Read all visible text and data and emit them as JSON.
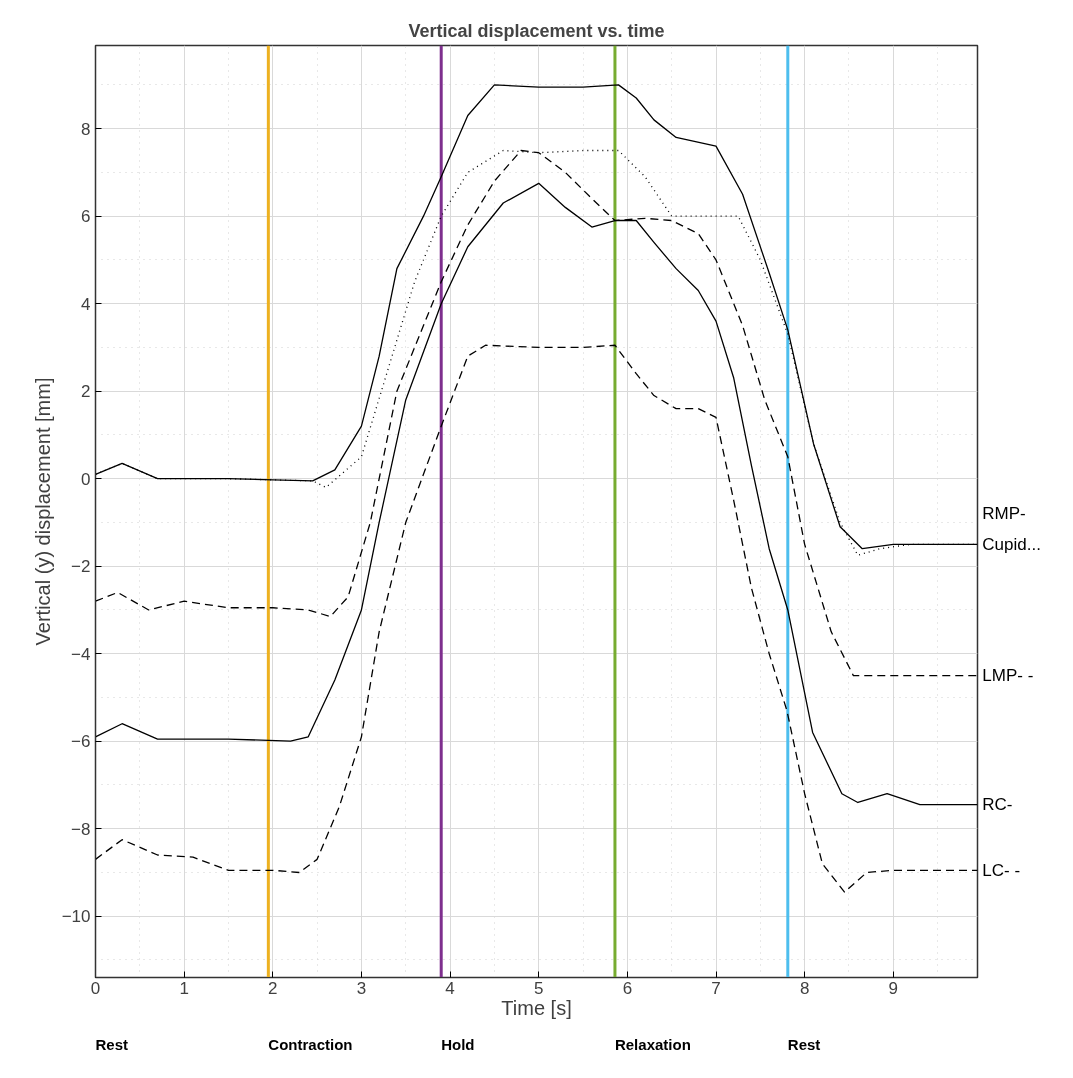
{
  "chart_data": {
    "type": "line",
    "title": "Vertical displacement vs. time",
    "xlabel": "Time [s]",
    "ylabel": "Vertical (y) displacement [mm]",
    "xlim": [
      0,
      9.95
    ],
    "xticks": [
      0,
      1,
      2,
      3,
      4,
      5,
      6,
      7,
      8,
      9
    ],
    "ylim": [
      -11.4,
      9.9
    ],
    "yticks": [
      -10,
      -8,
      -6,
      -4,
      -2,
      0,
      2,
      4,
      6,
      8
    ],
    "grid": true,
    "series": [
      {
        "name": "Cupid...",
        "color": "#000000",
        "line_style": "dotted",
        "x": [
          0,
          0.3,
          0.7,
          1.5,
          2.45,
          2.6,
          3.0,
          3.3,
          3.6,
          3.9,
          4.2,
          4.6,
          5.0,
          5.5,
          5.9,
          6.2,
          6.5,
          7.0,
          7.25,
          7.5,
          7.81,
          8.1,
          8.4,
          8.6,
          8.85,
          9.2,
          9.95
        ],
        "values": [
          0.1,
          0.35,
          0,
          0,
          -0.05,
          -0.2,
          0.5,
          2.5,
          4.5,
          6.0,
          7.0,
          7.5,
          7.45,
          7.5,
          7.5,
          6.9,
          6.0,
          6.0,
          6.0,
          5.0,
          3.3,
          0.8,
          -1.0,
          -1.75,
          -1.6,
          -1.5,
          -1.5
        ]
      },
      {
        "name": "RMP-",
        "color": "#000000",
        "line_style": "solid",
        "x": [
          0,
          0.3,
          0.7,
          1.5,
          2.45,
          2.7,
          3.0,
          3.2,
          3.4,
          3.7,
          3.9,
          4.2,
          4.5,
          5.0,
          5.5,
          5.9,
          6.1,
          6.3,
          6.55,
          7.0,
          7.3,
          7.6,
          7.81,
          8.1,
          8.4,
          8.65,
          9.0,
          9.5,
          9.95
        ],
        "values": [
          0.1,
          0.35,
          0,
          0,
          -0.05,
          0.2,
          1.2,
          2.8,
          4.8,
          6.0,
          6.9,
          8.3,
          9.0,
          8.95,
          8.95,
          9.0,
          8.7,
          8.2,
          7.8,
          7.6,
          6.5,
          4.7,
          3.4,
          0.8,
          -1.1,
          -1.6,
          -1.5,
          -1.5,
          -1.5
        ]
      },
      {
        "name": "LMP- -",
        "color": "#000000",
        "line_style": "dashed",
        "x": [
          0,
          0.25,
          0.6,
          1.0,
          1.5,
          2.0,
          2.4,
          2.65,
          2.85,
          3.1,
          3.4,
          3.7,
          3.9,
          4.2,
          4.5,
          4.8,
          5.0,
          5.3,
          5.6,
          5.86,
          6.2,
          6.5,
          6.8,
          7.0,
          7.3,
          7.55,
          7.81,
          8.0,
          8.3,
          8.55,
          9.0,
          9.95
        ],
        "values": [
          -2.8,
          -2.6,
          -3.0,
          -2.8,
          -2.95,
          -2.95,
          -3.0,
          -3.15,
          -2.7,
          -1.0,
          2.0,
          3.5,
          4.5,
          5.8,
          6.8,
          7.5,
          7.45,
          7.0,
          6.4,
          5.9,
          5.95,
          5.9,
          5.6,
          5.0,
          3.5,
          1.8,
          0.5,
          -1.5,
          -3.5,
          -4.5,
          -4.5,
          -4.5
        ]
      },
      {
        "name": "RC-",
        "color": "#000000",
        "line_style": "solid",
        "x": [
          0,
          0.3,
          0.7,
          1.5,
          2.2,
          2.4,
          2.7,
          3.0,
          3.2,
          3.5,
          3.9,
          4.2,
          4.6,
          5.0,
          5.3,
          5.6,
          5.86,
          6.1,
          6.3,
          6.55,
          6.8,
          7.0,
          7.2,
          7.4,
          7.6,
          7.81,
          8.09,
          8.42,
          8.6,
          8.93,
          9.3,
          9.95
        ],
        "values": [
          -5.9,
          -5.6,
          -5.95,
          -5.95,
          -6.0,
          -5.9,
          -4.6,
          -3.0,
          -1.0,
          1.8,
          4.0,
          5.3,
          6.3,
          6.75,
          6.2,
          5.75,
          5.9,
          5.9,
          5.4,
          4.8,
          4.3,
          3.6,
          2.3,
          0.3,
          -1.6,
          -3.0,
          -5.8,
          -7.2,
          -7.4,
          -7.2,
          -7.45,
          -7.45
        ]
      },
      {
        "name": "LC- -",
        "color": "#000000",
        "line_style": "dashed",
        "x": [
          0,
          0.3,
          0.7,
          1.1,
          1.5,
          2.0,
          2.3,
          2.5,
          2.75,
          3.0,
          3.2,
          3.5,
          3.9,
          4.2,
          4.4,
          5.0,
          5.5,
          5.86,
          6.1,
          6.3,
          6.55,
          6.8,
          7.0,
          7.2,
          7.4,
          7.6,
          7.8,
          8.0,
          8.2,
          8.45,
          8.7,
          9.0,
          9.95
        ],
        "values": [
          -8.7,
          -8.25,
          -8.6,
          -8.65,
          -8.95,
          -8.95,
          -9.0,
          -8.7,
          -7.5,
          -5.9,
          -3.5,
          -1.0,
          1.2,
          2.8,
          3.05,
          3.0,
          3.0,
          3.05,
          2.4,
          1.9,
          1.6,
          1.6,
          1.4,
          -0.5,
          -2.5,
          -4.0,
          -5.3,
          -7.2,
          -8.8,
          -9.45,
          -9.0,
          -8.95,
          -8.95
        ]
      }
    ],
    "ref_lines": [
      {
        "axis": "x",
        "value": 1.95,
        "color": "#edb120"
      },
      {
        "axis": "x",
        "value": 3.9,
        "color": "#7e2f8e"
      },
      {
        "axis": "x",
        "value": 5.86,
        "color": "#77ac30"
      },
      {
        "axis": "x",
        "value": 7.81,
        "color": "#4dbeee"
      }
    ],
    "annotations": [
      "Rest",
      "Contraction",
      "Hold",
      "Relaxation",
      "Rest"
    ]
  }
}
